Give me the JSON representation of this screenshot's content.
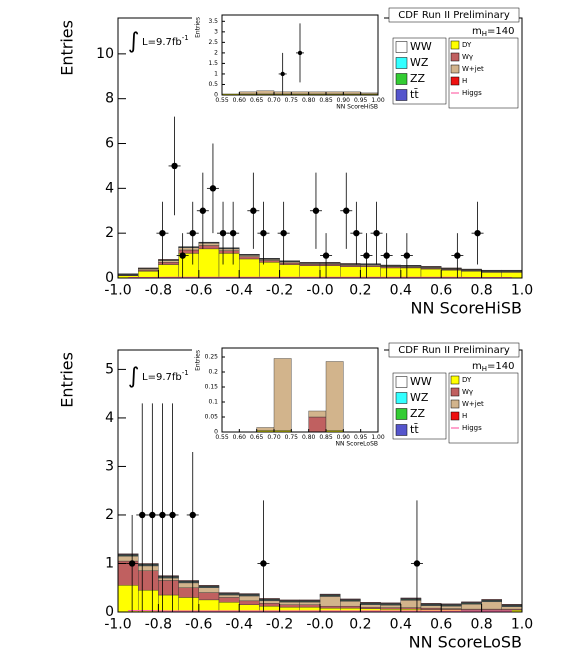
{
  "chart_data": [
    {
      "type": "histogram",
      "x_label": "NN ScoreHiSB",
      "y_label": "Entries",
      "annotations": {
        "header": "CDF Run II Preliminary",
        "mass": [
          "m",
          "H",
          "=140"
        ],
        "lumi": [
          "∫",
          "L=9.7fb",
          "-1"
        ]
      },
      "xlim": [
        -1,
        1
      ],
      "ylim": [
        0,
        11.6
      ],
      "xticks": [
        {
          "value": -1,
          "label": "-1.0"
        },
        -0.8,
        -0.6,
        -0.4,
        -0.2,
        {
          "value": 0,
          "label": "-0.0"
        },
        0.2,
        0.4,
        0.6,
        0.8,
        {
          "value": 1,
          "label": "1.0"
        }
      ],
      "yticks": [
        0,
        2,
        4,
        6,
        8,
        10
      ],
      "bins": [
        -1,
        -0.9,
        -0.8,
        -0.7,
        -0.6,
        -0.5,
        -0.4,
        -0.3,
        -0.2,
        -0.1,
        0,
        0.1,
        0.2,
        0.3,
        0.4,
        0.5,
        0.6,
        0.7,
        0.8,
        0.9,
        1
      ],
      "series": [
        {
          "name": "DY",
          "color": "#ffff00",
          "values": [
            0.1,
            0.3,
            0.6,
            1.1,
            1.3,
            1.1,
            0.85,
            0.7,
            0.6,
            0.55,
            0.55,
            0.5,
            0.5,
            0.45,
            0.45,
            0.4,
            0.35,
            0.3,
            0.25,
            0.25
          ]
        },
        {
          "name": "Wγ",
          "color": "#c06060",
          "values": [
            0.02,
            0.05,
            0.1,
            0.15,
            0.15,
            0.12,
            0.1,
            0.08,
            0.07,
            0.06,
            0.06,
            0.06,
            0.05,
            0.05,
            0.04,
            0.04,
            0.03,
            0.03,
            0.03,
            0.03
          ]
        },
        {
          "name": "W+jet",
          "color": "#d2b48c",
          "values": [
            0.02,
            0.05,
            0.08,
            0.1,
            0.1,
            0.08,
            0.06,
            0.05,
            0.05,
            0.04,
            0.04,
            0.04,
            0.04,
            0.03,
            0.03,
            0.03,
            0.02,
            0.02,
            0.02,
            0.02
          ]
        },
        {
          "name": "WW",
          "color": "#ffffff",
          "values": [
            0.01,
            0.01,
            0.01,
            0.01,
            0.01,
            0.01,
            0.01,
            0.01,
            0.01,
            0.01,
            0.01,
            0.01,
            0.01,
            0.01,
            0.01,
            0.01,
            0.01,
            0.01,
            0.01,
            0.01
          ]
        },
        {
          "name": "WZ",
          "color": "#33ffff",
          "values": [
            0.01,
            0.01,
            0.01,
            0.01,
            0.01,
            0.01,
            0.01,
            0.01,
            0.01,
            0.01,
            0.01,
            0.01,
            0.01,
            0.01,
            0.01,
            0.01,
            0.01,
            0.01,
            0.01,
            0.01
          ]
        },
        {
          "name": "ZZ",
          "color": "#33cc33",
          "values": [
            0.01,
            0.01,
            0.01,
            0.01,
            0.01,
            0.01,
            0.01,
            0.01,
            0.01,
            0.01,
            0.01,
            0.01,
            0.01,
            0.01,
            0.01,
            0.01,
            0.01,
            0.01,
            0.01,
            0.01
          ]
        },
        {
          "name": "tt̄",
          "color": "#5555cc",
          "values": [
            0.01,
            0.01,
            0.01,
            0.01,
            0.01,
            0.01,
            0.01,
            0.01,
            0.01,
            0.01,
            0.01,
            0.01,
            0.01,
            0.01,
            0.01,
            0.01,
            0.01,
            0.01,
            0.01,
            0.01
          ]
        },
        {
          "name": "H",
          "color": "#ee1111",
          "values": [
            0.01,
            0.01,
            0.01,
            0.01,
            0.01,
            0.01,
            0.01,
            0.01,
            0.01,
            0.01,
            0.01,
            0.01,
            0.01,
            0.01,
            0.01,
            0.01,
            0.01,
            0.01,
            0.01,
            0.01
          ]
        },
        {
          "name": "Higgs",
          "color": "#ff66aa",
          "draw": "line",
          "values": [
            0.02,
            0.02,
            0.03,
            0.03,
            0.03,
            0.03,
            0.03,
            0.03,
            0.03,
            0.03,
            0.03,
            0.03,
            0.03,
            0.03,
            0.03,
            0.03,
            0.03,
            0.02,
            0.02,
            0.02
          ]
        }
      ],
      "data_points": {
        "x": [
          -0.78,
          -0.72,
          -0.68,
          -0.63,
          -0.58,
          -0.53,
          -0.48,
          -0.43,
          -0.33,
          -0.28,
          -0.18,
          -0.02,
          0.03,
          0.13,
          0.18,
          0.23,
          0.28,
          0.33,
          0.43,
          0.68,
          0.78
        ],
        "y": [
          2,
          5,
          1,
          2,
          3,
          4,
          2,
          2,
          3,
          2,
          2,
          3,
          1,
          3,
          2,
          1,
          2,
          1,
          1,
          1,
          2
        ],
        "errors": [
          1.4,
          2.2,
          1,
          1.4,
          1.7,
          2,
          1.4,
          1.4,
          1.7,
          1.4,
          1.4,
          1.7,
          1,
          1.7,
          1.4,
          1,
          1.4,
          1,
          1,
          1,
          1.4
        ]
      }
    },
    {
      "type": "histogram",
      "x_label": "NN ScoreHiSB",
      "y_label": "Entries",
      "xlim": [
        0.55,
        1
      ],
      "ylim": [
        0,
        3.8
      ],
      "xticks": [
        0.55,
        {
          "value": 0.6,
          "label": "0.60"
        },
        0.65,
        {
          "value": 0.7,
          "label": "0.70"
        },
        0.75,
        {
          "value": 0.8,
          "label": "0.80"
        },
        0.85,
        {
          "value": 0.9,
          "label": "0.90"
        },
        0.95,
        {
          "value": 1,
          "label": "1.00"
        }
      ],
      "yticks": [
        0,
        0.5,
        1,
        1.5,
        2,
        2.5,
        3,
        3.5
      ],
      "bins": [
        0.55,
        0.6,
        0.65,
        0.7,
        0.75,
        0.8,
        0.85,
        0.9,
        0.95,
        1
      ],
      "series": [
        {
          "name": "DY",
          "color": "#ffff00",
          "values": [
            0.05,
            0.05,
            0.05,
            0.05,
            0.05,
            0.05,
            0.05,
            0.05,
            0.05
          ]
        },
        {
          "name": "W+jet",
          "color": "#d2b48c",
          "values": [
            0,
            0.1,
            0.15,
            0.1,
            0.1,
            0.1,
            0.1,
            0.1,
            0.05
          ]
        }
      ],
      "data_points": {
        "x": [
          0.725,
          0.775
        ],
        "y": [
          1,
          2
        ],
        "errors": [
          1,
          1.4
        ]
      }
    },
    {
      "type": "histogram",
      "x_label": "NN ScoreLoSB",
      "y_label": "Entries",
      "annotations": {
        "header": "CDF Run II Preliminary",
        "mass": [
          "m",
          "H",
          "=140"
        ],
        "lumi": [
          "∫",
          "L=9.7fb",
          "-1"
        ]
      },
      "xlim": [
        -1,
        1
      ],
      "ylim": [
        0,
        5.4
      ],
      "xticks": [
        {
          "value": -1,
          "label": "-1.0"
        },
        -0.8,
        -0.6,
        -0.4,
        -0.2,
        {
          "value": 0,
          "label": "-0.0"
        },
        0.2,
        0.4,
        0.6,
        0.8,
        {
          "value": 1,
          "label": "1.0"
        }
      ],
      "yticks": [
        0,
        1,
        2,
        3,
        4,
        5
      ],
      "bins": [
        -1,
        -0.9,
        -0.8,
        -0.7,
        -0.6,
        -0.5,
        -0.4,
        -0.3,
        -0.2,
        -0.1,
        0,
        0.1,
        0.2,
        0.3,
        0.4,
        0.5,
        0.6,
        0.7,
        0.8,
        0.9,
        1
      ],
      "series": [
        {
          "name": "DY",
          "color": "#ffff00",
          "values": [
            0.55,
            0.45,
            0.35,
            0.3,
            0.25,
            0.2,
            0.15,
            0.12,
            0.1,
            0.1,
            0.08,
            0.08,
            0.07,
            0.06,
            0.06,
            0.05,
            0.05,
            0.04,
            0.04,
            0.04
          ]
        },
        {
          "name": "Wγ",
          "color": "#c06060",
          "values": [
            0.5,
            0.4,
            0.3,
            0.2,
            0.15,
            0.1,
            0.08,
            0.06,
            0.05,
            0.05,
            0.04,
            0.04,
            0.03,
            0.03,
            0.03,
            0.03,
            0.02,
            0.02,
            0.02,
            0.02
          ]
        },
        {
          "name": "W+jet",
          "color": "#d2b48c",
          "values": [
            0.1,
            0.1,
            0.05,
            0.1,
            0.1,
            0.05,
            0.1,
            0.05,
            0.05,
            0.05,
            0.2,
            0.1,
            0.05,
            0.05,
            0.15,
            0.05,
            0.05,
            0.1,
            0.15,
            0.05
          ]
        },
        {
          "name": "WW",
          "color": "#ffffff",
          "values": [
            0.01,
            0.01,
            0.01,
            0.01,
            0.01,
            0.01,
            0.01,
            0.01,
            0.01,
            0.01,
            0.01,
            0.01,
            0.01,
            0.01,
            0.01,
            0.01,
            0.01,
            0.01,
            0.01,
            0.01
          ]
        },
        {
          "name": "WZ",
          "color": "#33ffff",
          "values": [
            0.01,
            0.01,
            0.01,
            0.01,
            0.01,
            0.01,
            0.01,
            0.01,
            0.01,
            0.01,
            0.01,
            0.01,
            0.01,
            0.01,
            0.01,
            0.01,
            0.01,
            0.01,
            0.01,
            0.01
          ]
        },
        {
          "name": "ZZ",
          "color": "#33cc33",
          "values": [
            0.01,
            0.01,
            0.01,
            0.01,
            0.01,
            0.01,
            0.01,
            0.01,
            0.01,
            0.01,
            0.01,
            0.01,
            0.01,
            0.01,
            0.01,
            0.01,
            0.01,
            0.01,
            0.01,
            0.01
          ]
        },
        {
          "name": "tt̄",
          "color": "#5555cc",
          "values": [
            0.01,
            0.01,
            0.01,
            0.01,
            0.01,
            0.01,
            0.01,
            0.01,
            0.01,
            0.01,
            0.01,
            0.01,
            0.01,
            0.01,
            0.01,
            0.01,
            0.01,
            0.01,
            0.01,
            0.01
          ]
        },
        {
          "name": "H",
          "color": "#ee1111",
          "values": [
            0.01,
            0.01,
            0.01,
            0.01,
            0.01,
            0.01,
            0.01,
            0.01,
            0.01,
            0.01,
            0.01,
            0.01,
            0.01,
            0.01,
            0.01,
            0.01,
            0.01,
            0.01,
            0.01,
            0.01
          ]
        },
        {
          "name": "Higgs",
          "color": "#ff66aa",
          "draw": "line",
          "values": [
            0.03,
            0.03,
            0.02,
            0.02,
            0.02,
            0.02,
            0.02,
            0.02,
            0.02,
            0.02,
            0.02,
            0.02,
            0.02,
            0.02,
            0.02,
            0.02,
            0.02,
            0.02,
            0.02,
            0.02
          ]
        }
      ],
      "data_points": {
        "x": [
          -0.93,
          -0.88,
          -0.83,
          -0.78,
          -0.73,
          -0.63,
          -0.28,
          0.48
        ],
        "y": [
          1,
          2,
          2,
          2,
          2,
          2,
          1,
          1
        ],
        "errors": [
          1,
          2.3,
          2.3,
          2.3,
          2.3,
          2.3,
          1.3,
          1.3
        ]
      }
    },
    {
      "type": "histogram",
      "x_label": "NN ScoreLoSB",
      "y_label": "Entries",
      "xlim": [
        0.55,
        1
      ],
      "ylim": [
        0,
        0.28
      ],
      "xticks": [
        0.55,
        {
          "value": 0.6,
          "label": "0.60"
        },
        0.65,
        {
          "value": 0.7,
          "label": "0.70"
        },
        0.75,
        {
          "value": 0.8,
          "label": "0.80"
        },
        0.85,
        {
          "value": 0.9,
          "label": "0.90"
        },
        0.95,
        {
          "value": 1,
          "label": "1.00"
        }
      ],
      "yticks": [
        0,
        0.05,
        0.1,
        0.15,
        0.2,
        0.25
      ],
      "bins": [
        0.55,
        0.6,
        0.65,
        0.7,
        0.75,
        0.8,
        0.85,
        0.9,
        0.95,
        1
      ],
      "series": [
        {
          "name": "DY",
          "color": "#ffff00",
          "values": [
            0,
            0,
            0.005,
            0.005,
            0,
            0,
            0.005,
            0,
            0
          ]
        },
        {
          "name": "Wγ",
          "color": "#c06060",
          "values": [
            0,
            0,
            0,
            0,
            0,
            0.05,
            0,
            0,
            0
          ]
        },
        {
          "name": "W+jet",
          "color": "#d2b48c",
          "values": [
            0,
            0,
            0.01,
            0.24,
            0,
            0.02,
            0.23,
            0,
            0
          ]
        }
      ]
    }
  ]
}
